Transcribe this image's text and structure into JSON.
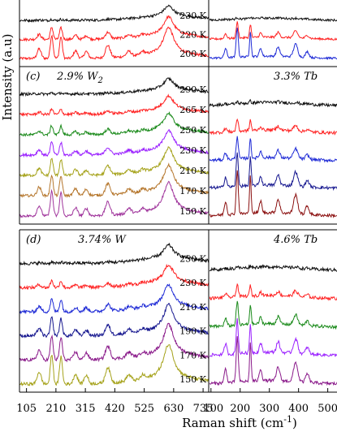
{
  "chart_data": {
    "type": "line",
    "xlabel": "Raman shift (cm",
    "xlabel_sup": "-1",
    "xlabel_close": ")",
    "ylabel": "Intensity (a.u)",
    "left_xticks": [
      105,
      210,
      315,
      420,
      525,
      630,
      735
    ],
    "left_xlim": [
      80,
      755
    ],
    "right_xticks": [
      100,
      200,
      300,
      400,
      500
    ],
    "right_xlim": [
      95,
      540
    ],
    "panels": [
      {
        "label": "",
        "concentration": "",
        "side": "left",
        "temperatures": [
          "230 K",
          "220 K",
          "200 K"
        ],
        "series_colors": [
          "#ff2222",
          "#ff2222",
          "#111111"
        ],
        "peak_profile": "w"
      },
      {
        "label": "",
        "concentration": "",
        "side": "right",
        "temperatures": [],
        "series_colors": [
          "#1f2bd6",
          "#ff2222",
          "#111111"
        ],
        "peak_profile": "tb"
      },
      {
        "label": "(c)",
        "concentration": "2.9% W",
        "concentration_sub": "2",
        "side": "left",
        "temperatures": [
          "290 K",
          "265 K",
          "250 K",
          "230 K",
          "210 K",
          "170 K",
          "150 K"
        ],
        "series_colors": [
          "#a0359c",
          "#b5762c",
          "#a5a21a",
          "#9b22ff",
          "#1a8a1a",
          "#ff2222",
          "#111111"
        ],
        "peak_profile": "w"
      },
      {
        "label": "",
        "concentration": "3.3% Tb",
        "side": "right",
        "temperatures": [],
        "series_colors": [
          "#8b1010",
          "#16178f",
          "#1f2bd6",
          "#ff2222",
          "#111111"
        ],
        "peak_profile": "tb"
      },
      {
        "label": "(d)",
        "concentration": "3.74% W",
        "side": "left",
        "temperatures": [
          "250 K",
          "230 K",
          "210 K",
          "190 K",
          "170 K",
          "150 K"
        ],
        "series_colors": [
          "#a5a21a",
          "#8a1a8a",
          "#16178f",
          "#1f2bd6",
          "#ff2222",
          "#111111"
        ],
        "peak_profile": "w"
      },
      {
        "label": "",
        "concentration": "4.6% Tb",
        "side": "right",
        "temperatures": [],
        "series_colors": [
          "#8a1a8a",
          "#9b22ff",
          "#1a8a1a",
          "#ff2222",
          "#111111"
        ],
        "peak_profile": "tb"
      }
    ]
  }
}
